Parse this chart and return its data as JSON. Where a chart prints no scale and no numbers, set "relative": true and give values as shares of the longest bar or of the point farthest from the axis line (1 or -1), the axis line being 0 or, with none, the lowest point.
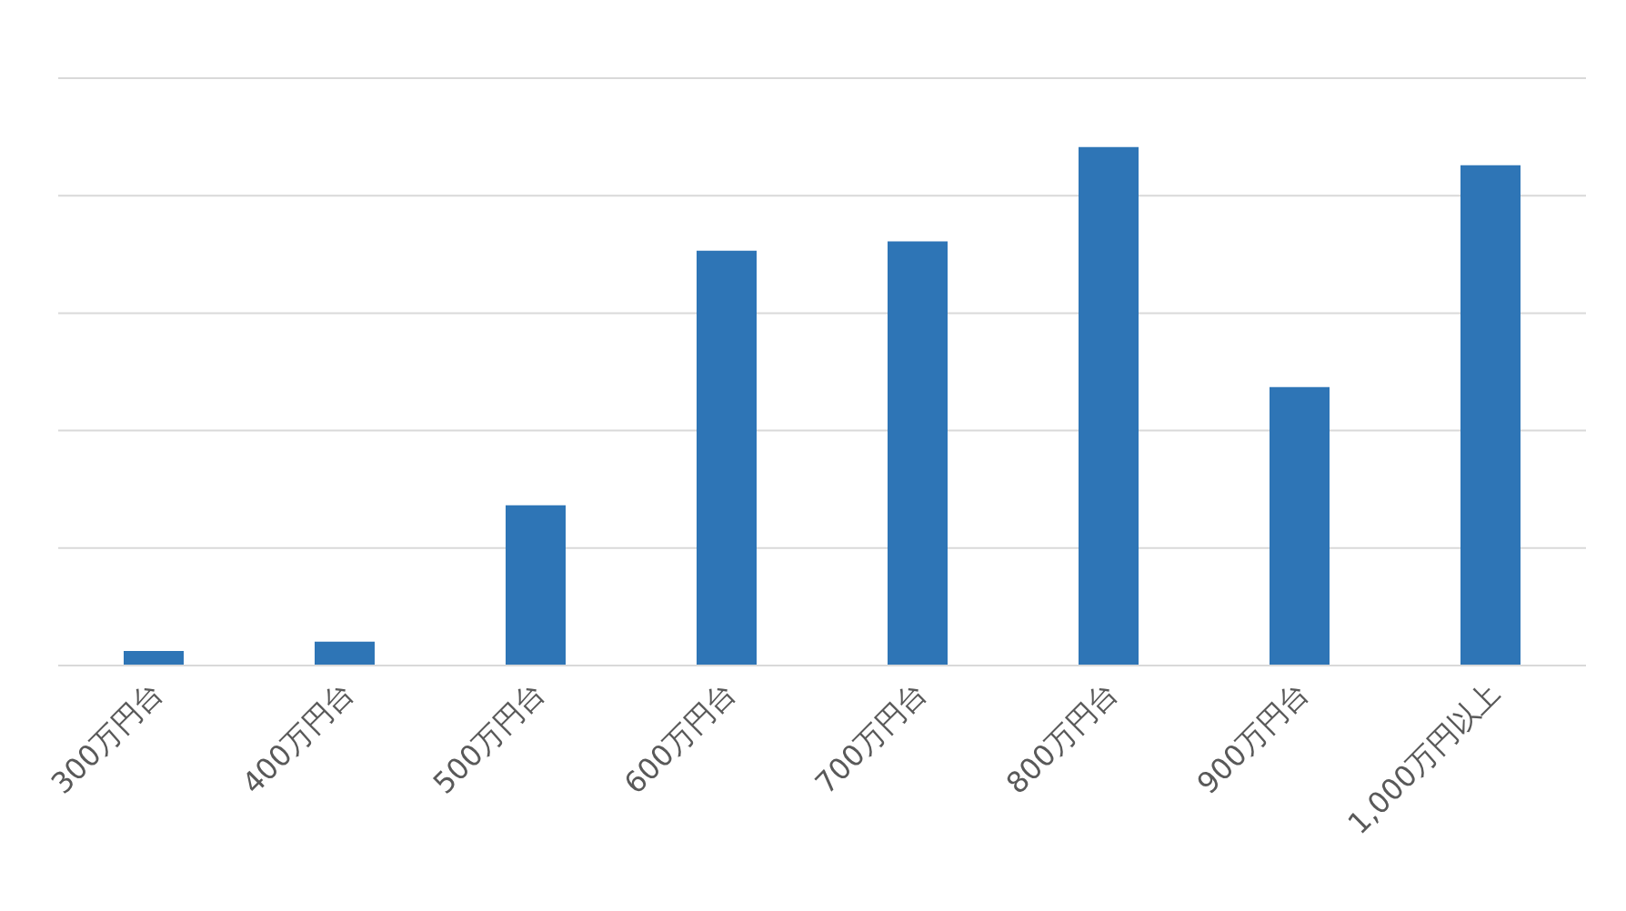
{
  "chart_data": {
    "type": "bar",
    "relative": true,
    "categories": [
      "300万円台",
      "400万円台",
      "500万円台",
      "600万円台",
      "700万円台",
      "800万円台",
      "900万円台",
      "1,000万円以上"
    ],
    "values": [
      0.028,
      0.046,
      0.309,
      0.8,
      0.818,
      1,
      0.537,
      0.965
    ],
    "color": "#2e75b6",
    "grid": "y"
  }
}
